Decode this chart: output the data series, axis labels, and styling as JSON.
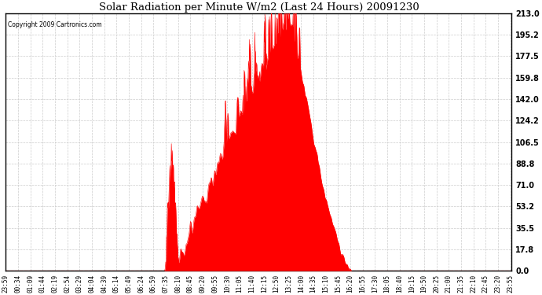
{
  "title": "Solar Radiation per Minute W/m2 (Last 24 Hours) 20091230",
  "copyright": "Copyright 2009 Cartronics.com",
  "bg_color": "#ffffff",
  "plot_bg_color": "#ffffff",
  "fill_color": "#ff0000",
  "line_color": "#ff0000",
  "grid_color": "#cccccc",
  "dashed_line_color": "#ff0000",
  "yticks": [
    0.0,
    17.8,
    35.5,
    53.2,
    71.0,
    88.8,
    106.5,
    124.2,
    142.0,
    159.8,
    177.5,
    195.2,
    213.0
  ],
  "ymax": 213.0,
  "ymin": 0.0,
  "num_points": 1440,
  "tick_labels": [
    "23:59",
    "00:34",
    "01:09",
    "01:44",
    "02:19",
    "02:54",
    "03:29",
    "04:04",
    "04:39",
    "05:14",
    "05:49",
    "06:24",
    "06:59",
    "07:35",
    "08:10",
    "08:45",
    "09:20",
    "09:55",
    "10:30",
    "11:05",
    "11:40",
    "12:15",
    "12:50",
    "13:25",
    "14:00",
    "14:35",
    "15:10",
    "15:45",
    "16:20",
    "16:55",
    "17:30",
    "18:05",
    "18:40",
    "19:15",
    "19:50",
    "20:25",
    "21:00",
    "21:35",
    "22:10",
    "22:45",
    "23:20",
    "23:55"
  ],
  "tick_interval_minutes": 35
}
